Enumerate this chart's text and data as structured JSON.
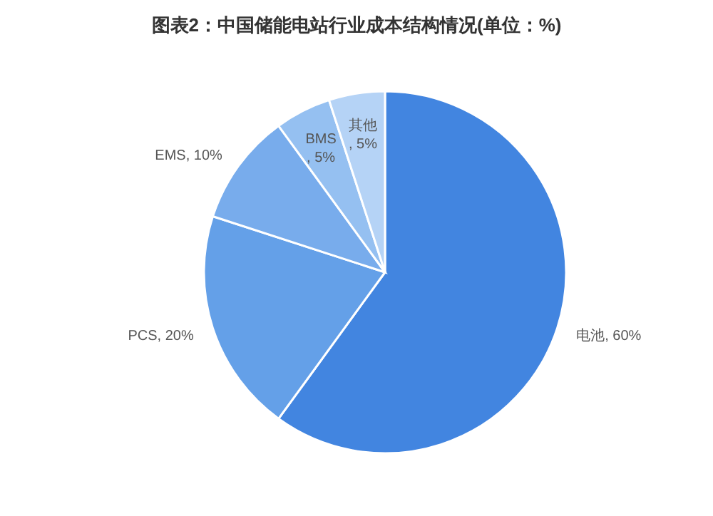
{
  "chart_data": {
    "type": "pie",
    "title": "图表2：中国储能电站行业成本结构情况(单位：%)",
    "categories": [
      "电池",
      "PCS",
      "EMS",
      "BMS",
      "其他"
    ],
    "values": [
      60,
      20,
      10,
      5,
      5
    ],
    "colors": [
      "#4285e0",
      "#64a0e8",
      "#78acec",
      "#95c0f1",
      "#b5d3f6"
    ],
    "value_labels": [
      ", 60%",
      ", 20%",
      ", 10%",
      ", 5%",
      ", 5%"
    ]
  }
}
